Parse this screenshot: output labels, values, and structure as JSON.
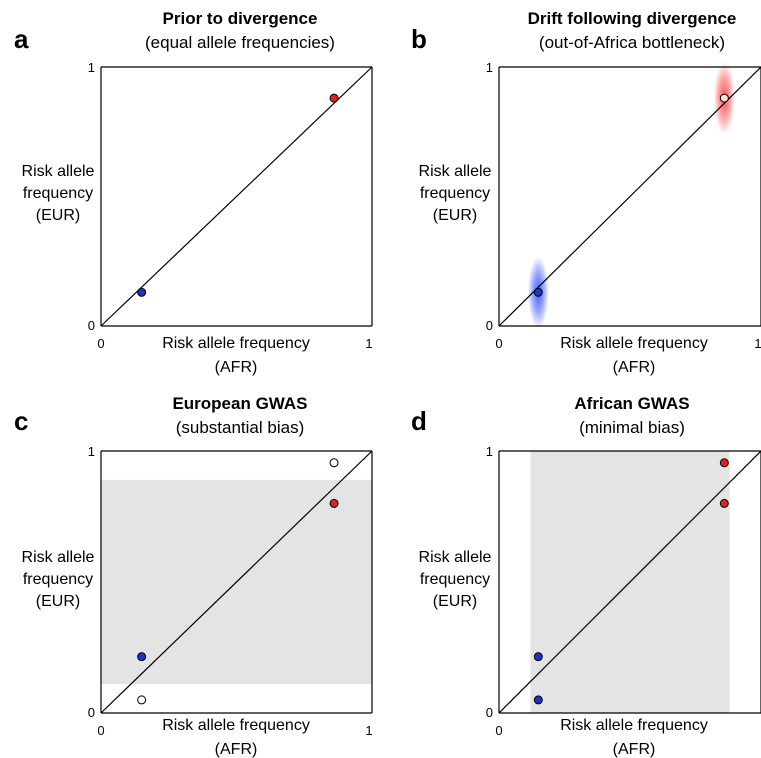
{
  "chart_data": [
    {
      "type": "scatter",
      "letter": "a",
      "title": "Prior to divergence",
      "subtitle": "(equal allele frequencies)",
      "xlabel": [
        "Risk allele frequency",
        "(AFR)"
      ],
      "ylabel": [
        "Risk allele",
        "frequency",
        "(EUR)"
      ],
      "xlim": [
        0,
        1
      ],
      "ylim": [
        0,
        1
      ],
      "xticks": [
        "0",
        "1"
      ],
      "yticks": [
        "0",
        "1"
      ],
      "diagonal": true,
      "shaded_region": null,
      "clouds": [],
      "points": [
        {
          "x": 0.15,
          "y": 0.13,
          "fill": "#1a33cc",
          "stroke": "#000000"
        },
        {
          "x": 0.86,
          "y": 0.88,
          "fill": "#dd2222",
          "stroke": "#000000"
        }
      ]
    },
    {
      "type": "scatter",
      "letter": "b",
      "title": "Drift following divergence",
      "subtitle": "(out-of-Africa bottleneck)",
      "xlabel": [
        "Risk allele frequency",
        "(AFR)"
      ],
      "ylabel": [
        "Risk allele",
        "frequency",
        "(EUR)"
      ],
      "xlim": [
        0,
        1
      ],
      "ylim": [
        0,
        1
      ],
      "xticks": [
        "0",
        "1"
      ],
      "yticks": [
        "0",
        "1"
      ],
      "diagonal": true,
      "shaded_region": null,
      "clouds": [
        {
          "x": 0.15,
          "y": 0.13,
          "rx": 0.04,
          "ry": 0.14,
          "color": "#2244ff"
        },
        {
          "x": 0.86,
          "y": 0.88,
          "rx": 0.04,
          "ry": 0.14,
          "color": "#ff3333"
        }
      ],
      "points": [
        {
          "x": 0.15,
          "y": 0.13,
          "fill": "#1a33cc",
          "stroke": "#000000"
        },
        {
          "x": 0.86,
          "y": 0.88,
          "fill": "#ffdddd",
          "stroke": "#000000"
        }
      ]
    },
    {
      "type": "scatter",
      "letter": "c",
      "title": "European GWAS",
      "subtitle": "(substantial bias)",
      "xlabel": [
        "Risk allele frequency",
        "(AFR)"
      ],
      "ylabel": [
        "Risk allele",
        "frequency",
        "(EUR)"
      ],
      "xlim": [
        0,
        1
      ],
      "ylim": [
        0,
        1
      ],
      "xticks": [
        "0",
        "1"
      ],
      "yticks": [
        "0",
        "1"
      ],
      "diagonal": true,
      "shaded_region": {
        "x": [
          0,
          1
        ],
        "y": [
          0.11,
          0.89
        ],
        "color": "#e4e4e4"
      },
      "clouds": [],
      "points": [
        {
          "x": 0.15,
          "y": 0.215,
          "fill": "#1a33cc",
          "stroke": "#000000"
        },
        {
          "x": 0.15,
          "y": 0.05,
          "fill": "#ffffff",
          "stroke": "#000000"
        },
        {
          "x": 0.86,
          "y": 0.8,
          "fill": "#dd2222",
          "stroke": "#000000"
        },
        {
          "x": 0.86,
          "y": 0.955,
          "fill": "#ffffff",
          "stroke": "#000000"
        }
      ]
    },
    {
      "type": "scatter",
      "letter": "d",
      "title": "African GWAS",
      "subtitle": "(minimal bias)",
      "xlabel": [
        "Risk allele frequency",
        "(AFR)"
      ],
      "ylabel": [
        "Risk allele",
        "frequency",
        "(EUR)"
      ],
      "xlim": [
        0,
        1
      ],
      "ylim": [
        0,
        1
      ],
      "xticks": [
        "0"
      ],
      "yticks": [
        "0",
        "1"
      ],
      "diagonal": true,
      "shaded_region": {
        "x": [
          0.12,
          0.88
        ],
        "y": [
          0,
          1
        ],
        "color": "#e4e4e4"
      },
      "clouds": [],
      "points": [
        {
          "x": 0.15,
          "y": 0.215,
          "fill": "#1a33cc",
          "stroke": "#000000"
        },
        {
          "x": 0.15,
          "y": 0.05,
          "fill": "#1a33cc",
          "stroke": "#000000"
        },
        {
          "x": 0.86,
          "y": 0.8,
          "fill": "#dd2222",
          "stroke": "#000000"
        },
        {
          "x": 0.86,
          "y": 0.955,
          "fill": "#dd2222",
          "stroke": "#000000"
        }
      ]
    }
  ]
}
